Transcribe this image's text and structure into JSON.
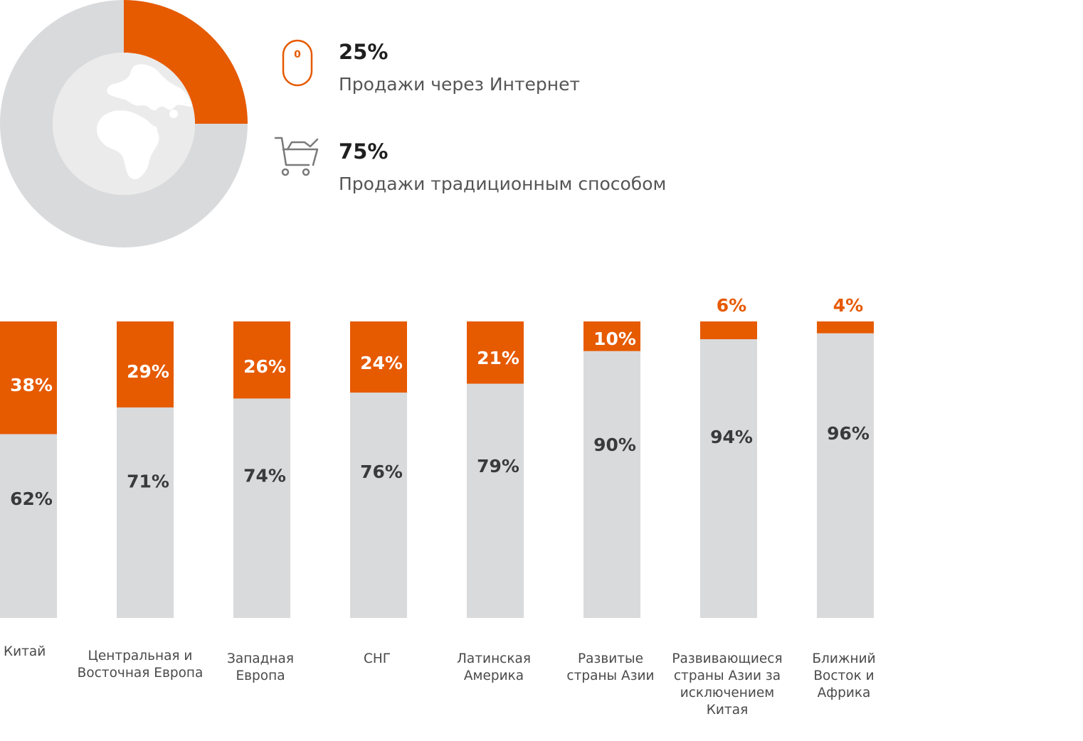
{
  "colors": {
    "online": "#E65A00",
    "traditional": "#D9DADC",
    "globe_bg": "#EBEBEB",
    "globe_land": "#FFFFFF",
    "legend_text": "#1F1F1F",
    "label_text": "#555555",
    "bar_label_dark": "#3A3A3A",
    "bar_label_light": "#FFFFFF",
    "icon_gray": "#7A7A7A"
  },
  "donut": {
    "online_share": 25,
    "traditional_share": 75
  },
  "legend": [
    {
      "percent": "25%",
      "label": "Продажи через Интернет",
      "icon": "mouse-icon",
      "mouse_digit": "0"
    },
    {
      "percent": "75%",
      "label": "Продажи традиционным способом",
      "icon": "shopping-cart-icon"
    }
  ],
  "chart_data": {
    "type": "bar",
    "stacked": true,
    "categories": [
      [
        "Китай"
      ],
      [
        "Центральная и",
        "Восточная Европа"
      ],
      [
        "Западная",
        "Европа"
      ],
      [
        "СНГ"
      ],
      [
        "Латинская",
        "Америка"
      ],
      [
        "Развитые",
        "страны Азии"
      ],
      [
        "Развивающиеся",
        "страны Азии за",
        "исключением",
        "Китая"
      ],
      [
        "Ближний",
        "Восток и",
        "Африка"
      ]
    ],
    "series": [
      {
        "key": "online",
        "values": [
          38,
          29,
          26,
          24,
          21,
          10,
          6,
          4
        ],
        "labels": [
          "38%",
          "29%",
          "26%",
          "24%",
          "21%",
          "10%",
          "6%",
          "4%"
        ]
      },
      {
        "key": "traditional",
        "values": [
          62,
          71,
          74,
          76,
          79,
          90,
          94,
          96
        ],
        "labels": [
          "62%",
          "71%",
          "74%",
          "76%",
          "79%",
          "90%",
          "94%",
          "96%"
        ]
      }
    ],
    "ylim": [
      0,
      100
    ],
    "grid": false
  }
}
